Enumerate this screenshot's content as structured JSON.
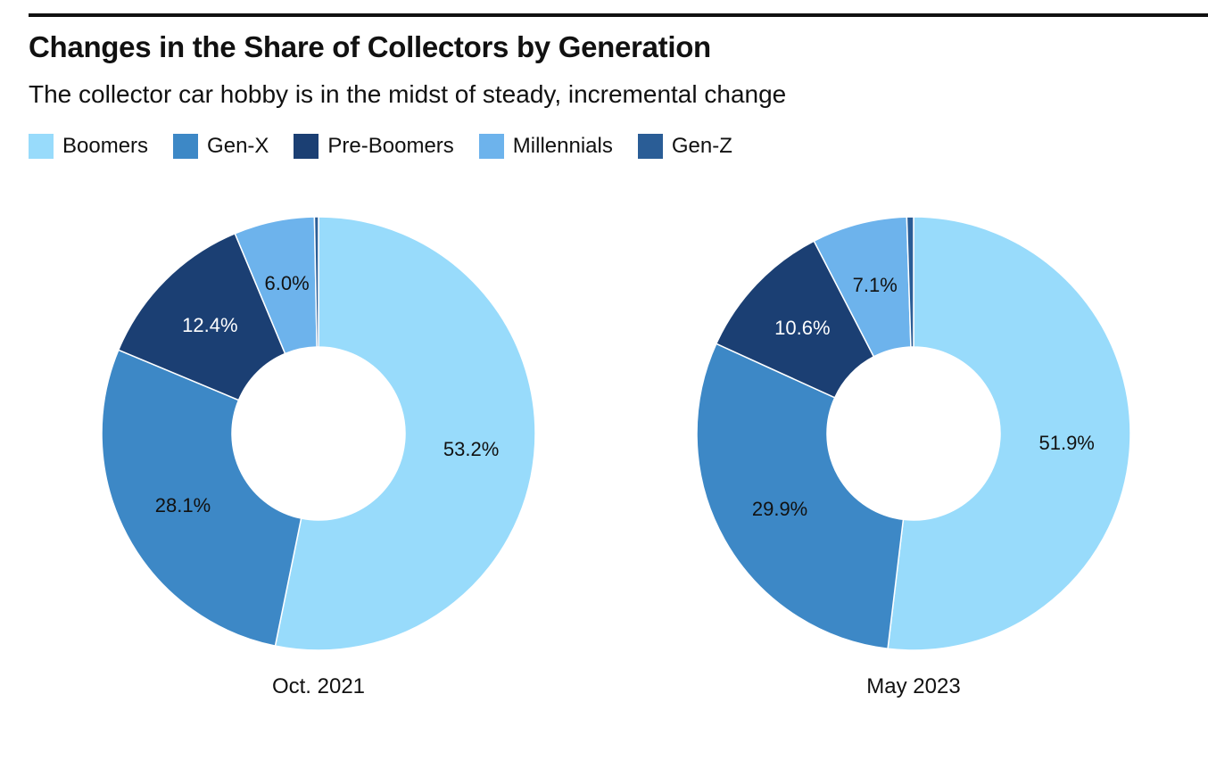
{
  "header": {
    "title": "Changes in the Share of Collectors by Generation",
    "subtitle": "The collector car hobby is in the midst of steady, incremental change"
  },
  "legend": [
    {
      "label": "Boomers",
      "color": "#98dbfb"
    },
    {
      "label": "Gen-X",
      "color": "#3d88c6"
    },
    {
      "label": "Pre-Boomers",
      "color": "#1b3f73"
    },
    {
      "label": "Millennials",
      "color": "#6db3ec"
    },
    {
      "label": "Gen-Z",
      "color": "#2a5d96"
    }
  ],
  "chart_data": [
    {
      "type": "pie",
      "donut": true,
      "caption": "Oct. 2021",
      "slices": [
        {
          "category": "Boomers",
          "value": 53.2,
          "label": "53.2%",
          "color": "#98dbfb"
        },
        {
          "category": "Gen-X",
          "value": 28.1,
          "label": "28.1%",
          "color": "#3d88c6"
        },
        {
          "category": "Pre-Boomers",
          "value": 12.4,
          "label": "12.4%",
          "color": "#1b3f73"
        },
        {
          "category": "Millennials",
          "value": 6.0,
          "label": "6.0%",
          "color": "#6db3ec"
        },
        {
          "category": "Gen-Z",
          "value": 0.3,
          "label": "",
          "color": "#2a5d96"
        }
      ]
    },
    {
      "type": "pie",
      "donut": true,
      "caption": "May 2023",
      "slices": [
        {
          "category": "Boomers",
          "value": 51.9,
          "label": "51.9%",
          "color": "#98dbfb"
        },
        {
          "category": "Gen-X",
          "value": 29.9,
          "label": "29.9%",
          "color": "#3d88c6"
        },
        {
          "category": "Pre-Boomers",
          "value": 10.6,
          "label": "10.6%",
          "color": "#1b3f73"
        },
        {
          "category": "Millennials",
          "value": 7.1,
          "label": "7.1%",
          "color": "#6db3ec"
        },
        {
          "category": "Gen-Z",
          "value": 0.5,
          "label": "",
          "color": "#2a5d96"
        }
      ]
    }
  ]
}
